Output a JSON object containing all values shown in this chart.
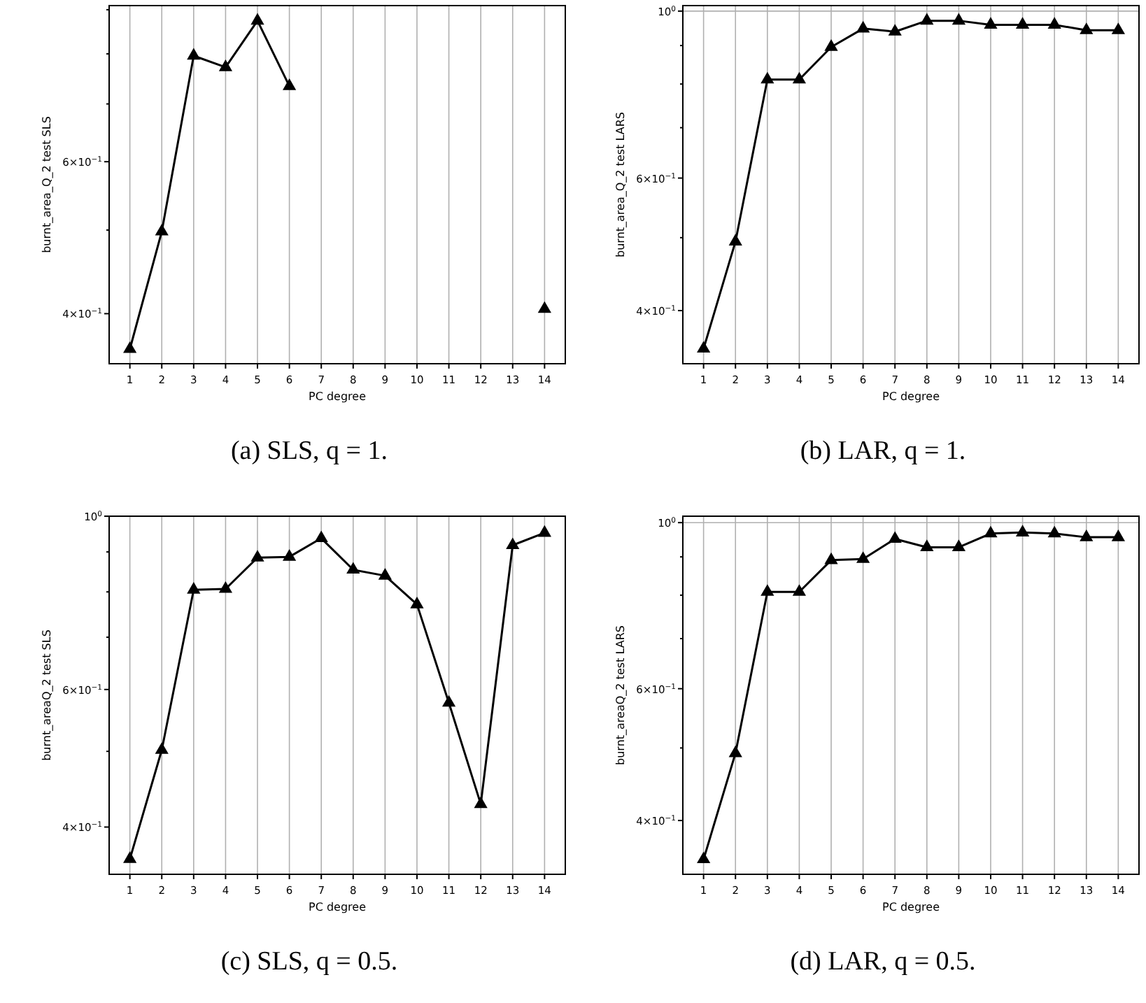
{
  "chart_data": [
    {
      "type": "line",
      "xlabel": "PC degree",
      "ylabel": "burnt_area_Q_2 test SLS",
      "annotations": [
        "(a) SLS, q = 1."
      ],
      "x": [
        1,
        2,
        3,
        4,
        5,
        6,
        7,
        8,
        9,
        10,
        11,
        12,
        13,
        14
      ],
      "series": [
        {
          "color": "#000000",
          "values": [
            0.364,
            0.498,
            0.796,
            0.772,
            0.874,
            0.734,
            null,
            null,
            null,
            null,
            null,
            null,
            null,
            0.405
          ]
        }
      ],
      "log": "y",
      "grid": "x",
      "marker": "triangle",
      "line_style": "solid",
      "xlim": [
        0.35,
        14.65
      ],
      "xticks": [
        1,
        2,
        3,
        4,
        5,
        6,
        7,
        8,
        9,
        10,
        11,
        12,
        13,
        14
      ],
      "ylim": [
        0.35,
        0.91
      ],
      "yticks": [
        {
          "value": 0.4,
          "label": "4×10$^{−1}$"
        },
        {
          "value": 0.5,
          "label": null
        },
        {
          "value": 0.6,
          "label": "6×10$^{−1}$"
        },
        {
          "value": 0.7,
          "label": null
        },
        {
          "value": 0.8,
          "label": null
        },
        {
          "value": 0.9,
          "label": null
        }
      ]
    },
    {
      "type": "line",
      "xlabel": "PC degree",
      "ylabel": "burnt_area_Q_2 test LARS",
      "annotations": [
        "(b) LAR, q = 1."
      ],
      "x": [
        1,
        2,
        3,
        4,
        5,
        6,
        7,
        8,
        9,
        10,
        11,
        12,
        13,
        14
      ],
      "series": [
        {
          "color": "#000000",
          "values": [
            0.356,
            0.494,
            0.811,
            0.811,
            0.896,
            0.948,
            0.939,
            0.971,
            0.971,
            0.959,
            0.959,
            0.959,
            0.943,
            0.943
          ]
        }
      ],
      "log": "y",
      "grid": true,
      "marker": "triangle",
      "line_style": "solid",
      "xlim": [
        0.35,
        14.65
      ],
      "xticks": [
        1,
        2,
        3,
        4,
        5,
        6,
        7,
        8,
        9,
        10,
        11,
        12,
        13,
        14
      ],
      "ylim": [
        0.34,
        1.017
      ],
      "yticks": [
        {
          "value": 0.4,
          "label": "4×10$^{−1}$"
        },
        {
          "value": 0.5,
          "label": null
        },
        {
          "value": 0.6,
          "label": "6×10$^{−1}$"
        },
        {
          "value": 0.7,
          "label": null
        },
        {
          "value": 0.8,
          "label": null
        },
        {
          "value": 0.9,
          "label": null
        },
        {
          "value": 1,
          "label": "10$^{0}$"
        }
      ]
    },
    {
      "type": "line",
      "xlabel": "PC degree",
      "ylabel": "burnt_areaQ_2 test SLS",
      "annotations": [
        "(c) SLS, q = 0.5."
      ],
      "x": [
        1,
        2,
        3,
        4,
        5,
        6,
        7,
        8,
        9,
        10,
        11,
        12,
        13,
        14
      ],
      "series": [
        {
          "color": "#000000",
          "values": [
            0.364,
            0.502,
            0.805,
            0.807,
            0.885,
            0.887,
            0.937,
            0.854,
            0.839,
            0.771,
            0.577,
            0.428,
            0.918,
            0.952
          ]
        }
      ],
      "log": "y",
      "grid": true,
      "marker": "triangle",
      "line_style": "solid",
      "xlim": [
        0.35,
        14.65
      ],
      "xticks": [
        1,
        2,
        3,
        4,
        5,
        6,
        7,
        8,
        9,
        10,
        11,
        12,
        13,
        14
      ],
      "ylim": [
        0.348,
        1.0
      ],
      "yticks": [
        {
          "value": 0.4,
          "label": "4×10$^{−1}$"
        },
        {
          "value": 0.5,
          "label": null
        },
        {
          "value": 0.6,
          "label": "6×10$^{−1}$"
        },
        {
          "value": 0.7,
          "label": null
        },
        {
          "value": 0.8,
          "label": null
        },
        {
          "value": 0.9,
          "label": null
        },
        {
          "value": 1,
          "label": "10$^{0}$"
        }
      ]
    },
    {
      "type": "line",
      "xlabel": "PC degree",
      "ylabel": "burnt_areaQ_2 test LARS",
      "annotations": [
        "(d) LAR, q = 0.5."
      ],
      "x": [
        1,
        2,
        3,
        4,
        5,
        6,
        7,
        8,
        9,
        10,
        11,
        12,
        13,
        14
      ],
      "series": [
        {
          "color": "#000000",
          "values": [
            0.355,
            0.492,
            0.808,
            0.808,
            0.891,
            0.894,
            0.951,
            0.927,
            0.927,
            0.967,
            0.97,
            0.967,
            0.956,
            0.956
          ]
        }
      ],
      "log": "y",
      "grid": true,
      "marker": "triangle",
      "line_style": "solid",
      "xlim": [
        0.35,
        14.65
      ],
      "xticks": [
        1,
        2,
        3,
        4,
        5,
        6,
        7,
        8,
        9,
        10,
        11,
        12,
        13,
        14
      ],
      "ylim": [
        0.339,
        1.02
      ],
      "yticks": [
        {
          "value": 0.4,
          "label": "4×10$^{−1}$"
        },
        {
          "value": 0.5,
          "label": null
        },
        {
          "value": 0.6,
          "label": "6×10$^{−1}$"
        },
        {
          "value": 0.7,
          "label": null
        },
        {
          "value": 0.8,
          "label": null
        },
        {
          "value": 0.9,
          "label": null
        },
        {
          "value": 1,
          "label": "10$^{0}$"
        }
      ]
    }
  ]
}
